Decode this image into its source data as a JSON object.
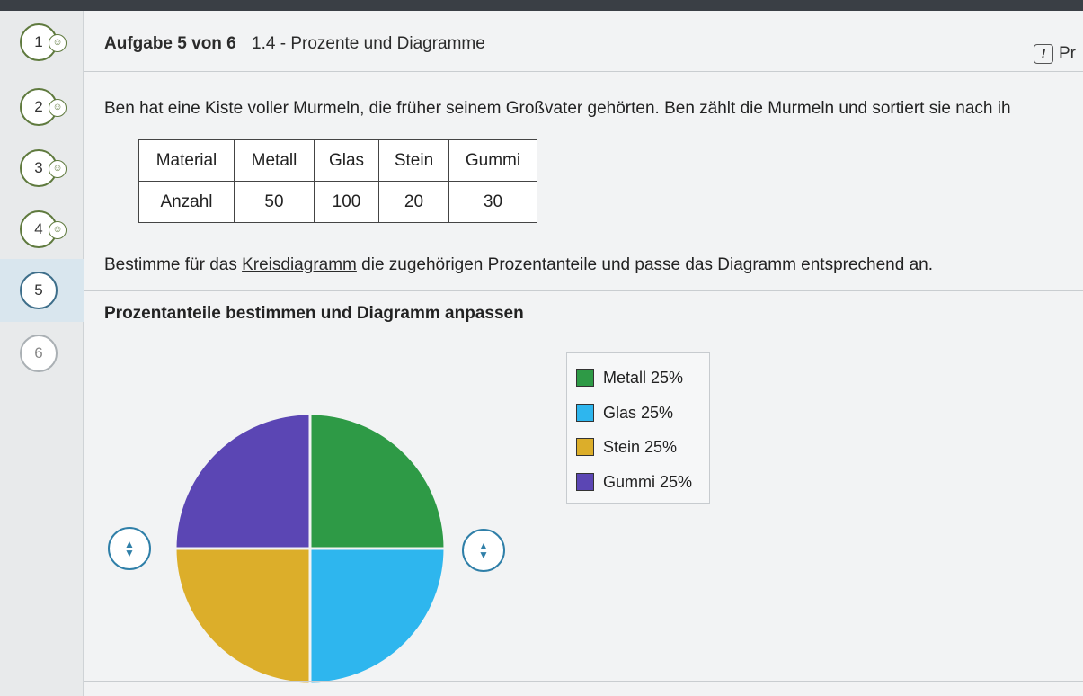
{
  "sidebar": {
    "tasks": [
      {
        "number": "1",
        "smiley": "☺"
      },
      {
        "number": "2",
        "smiley": "☺"
      },
      {
        "number": "3",
        "smiley": "☺"
      },
      {
        "number": "4",
        "smiley": "☺"
      },
      {
        "number": "5",
        "smiley": ""
      },
      {
        "number": "6",
        "smiley": ""
      }
    ]
  },
  "header": {
    "task_counter": "Aufgabe 5 von 6",
    "title": "1.4 - Prozente und Diagramme",
    "help_label": "Pr"
  },
  "intro_text": "Ben hat eine Kiste voller Murmeln, die früher seinem Großvater gehörten. Ben zählt die Murmeln und sortiert sie nach ih",
  "table": {
    "header": [
      "Material",
      "Metall",
      "Glas",
      "Stein",
      "Gummi"
    ],
    "row": [
      "Anzahl",
      "50",
      "100",
      "20",
      "30"
    ]
  },
  "instruction": {
    "before": "Bestimme für das ",
    "link": "Kreisdiagramm",
    "after": " die zugehörigen Prozentanteile und passe das Diagramm entsprechend an."
  },
  "section_title": "Prozentanteile bestimmen und Diagramm anpassen",
  "chart_data": {
    "type": "pie",
    "title": "",
    "slices": [
      {
        "label": "Metall 25%",
        "name": "Metall",
        "value": 25,
        "color": "#2e9a46"
      },
      {
        "label": "Glas 25%",
        "name": "Glas",
        "value": 25,
        "color": "#2eb6ee"
      },
      {
        "label": "Stein 25%",
        "name": "Stein",
        "value": 25,
        "color": "#dcae2a"
      },
      {
        "label": "Gummi 25%",
        "name": "Gummi",
        "value": 25,
        "color": "#5b46b4"
      }
    ]
  }
}
